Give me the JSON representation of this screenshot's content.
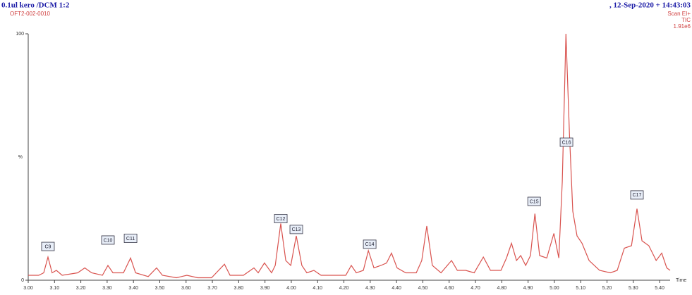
{
  "chart_data": {
    "type": "line",
    "title": "0.1ul kero /DCM 1:2",
    "subtitle": "OFT2-002-0010",
    "date": ", 12-Sep-2020 + 14:43:03",
    "scan": "Scan EI+",
    "trace": "TIC",
    "intensity": "1.91e6",
    "ylabel": "%",
    "xlabel": "Time",
    "xlim": [
      3.0,
      5.44
    ],
    "ylim": [
      0,
      100
    ],
    "yticks": [
      0,
      100
    ],
    "xticks": [
      {
        "value": 3.0,
        "label": "3.00"
      },
      {
        "value": 3.1,
        "label": "3.10"
      },
      {
        "value": 3.2,
        "label": "3.20"
      },
      {
        "value": 3.3,
        "label": "3.30"
      },
      {
        "value": 3.4,
        "label": "3.40"
      },
      {
        "value": 3.5,
        "label": "3.50"
      },
      {
        "value": 3.6,
        "label": "3.60"
      },
      {
        "value": 3.7,
        "label": "3.70"
      },
      {
        "value": 3.8,
        "label": "3.80"
      },
      {
        "value": 3.9,
        "label": "3.90"
      },
      {
        "value": 4.0,
        "label": "4.00"
      },
      {
        "value": 4.1,
        "label": "4.10"
      },
      {
        "value": 4.2,
        "label": "4.20"
      },
      {
        "value": 4.3,
        "label": "4.30"
      },
      {
        "value": 4.4,
        "label": "4.40"
      },
      {
        "value": 4.5,
        "label": "4.50"
      },
      {
        "value": 4.6,
        "label": "4.60"
      },
      {
        "value": 4.7,
        "label": "4.70"
      },
      {
        "value": 4.8,
        "label": "4.80"
      },
      {
        "value": 4.9,
        "label": "4.90"
      },
      {
        "value": 5.0,
        "label": "5.00"
      },
      {
        "value": 5.1,
        "label": "5.10"
      },
      {
        "value": 5.2,
        "label": "5.20"
      },
      {
        "value": 5.3,
        "label": "5.30"
      },
      {
        "value": 5.4,
        "label": "5.40"
      }
    ],
    "color": "#d9534f",
    "x": [
      3.0,
      3.04,
      3.059,
      3.075,
      3.091,
      3.107,
      3.129,
      3.188,
      3.215,
      3.241,
      3.282,
      3.303,
      3.322,
      3.362,
      3.389,
      3.408,
      3.456,
      3.488,
      3.51,
      3.563,
      3.603,
      3.644,
      3.697,
      3.746,
      3.767,
      3.818,
      3.858,
      3.874,
      3.898,
      3.925,
      3.939,
      3.96,
      3.979,
      3.998,
      4.019,
      4.04,
      4.059,
      4.086,
      4.113,
      4.167,
      4.207,
      4.228,
      4.247,
      4.274,
      4.293,
      4.314,
      4.341,
      4.362,
      4.381,
      4.402,
      4.435,
      4.475,
      4.496,
      4.515,
      4.536,
      4.569,
      4.609,
      4.631,
      4.663,
      4.695,
      4.73,
      4.757,
      4.797,
      4.818,
      4.837,
      4.856,
      4.872,
      4.891,
      4.909,
      4.926,
      4.944,
      4.971,
      4.998,
      5.017,
      5.03,
      5.044,
      5.057,
      5.07,
      5.086,
      5.105,
      5.132,
      5.172,
      5.213,
      5.239,
      5.266,
      5.293,
      5.314,
      5.333,
      5.359,
      5.387,
      5.408,
      5.427,
      5.44
    ],
    "values": [
      2,
      2,
      3,
      9.4,
      3,
      4,
      2,
      3,
      5,
      3,
      2,
      6,
      3,
      3,
      9,
      3,
      1.5,
      5,
      2,
      1,
      2,
      1,
      1,
      6.5,
      2,
      2,
      5,
      3,
      7,
      3,
      6,
      23,
      8,
      6,
      18,
      6,
      3,
      4,
      2,
      2,
      2,
      6,
      3,
      4,
      12,
      5,
      6,
      7,
      11,
      5,
      3,
      3,
      8,
      22,
      6,
      3,
      8,
      4,
      4,
      3,
      9.4,
      4,
      4,
      9,
      15,
      8,
      10,
      6,
      10,
      27,
      10,
      9,
      19,
      9,
      40,
      100,
      60,
      28,
      18,
      15,
      8,
      4,
      3,
      4,
      13,
      14,
      29,
      16,
      14,
      8,
      11,
      5,
      4
    ],
    "annotations": [
      {
        "text": "C9",
        "x": 3.075,
        "y": 13.7
      },
      {
        "text": "C10",
        "x": 3.303,
        "y": 16.3
      },
      {
        "text": "C11",
        "x": 3.389,
        "y": 17
      },
      {
        "text": "C12",
        "x": 3.96,
        "y": 25
      },
      {
        "text": "C13",
        "x": 4.019,
        "y": 20.6
      },
      {
        "text": "C14",
        "x": 4.298,
        "y": 14.6
      },
      {
        "text": "C15",
        "x": 4.923,
        "y": 32
      },
      {
        "text": "C16",
        "x": 5.046,
        "y": 56
      },
      {
        "text": "C17",
        "x": 5.314,
        "y": 34.6
      }
    ]
  }
}
